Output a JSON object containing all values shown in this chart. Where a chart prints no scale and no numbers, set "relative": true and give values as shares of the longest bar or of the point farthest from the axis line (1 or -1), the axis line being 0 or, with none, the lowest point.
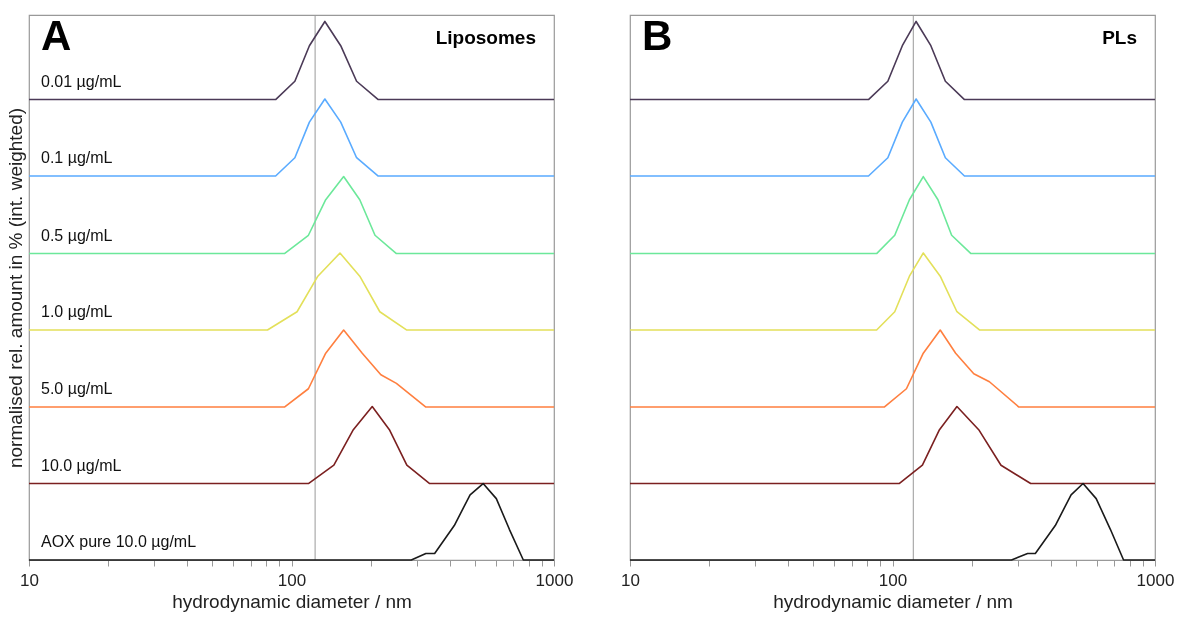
{
  "chart_data": [
    {
      "type": "line",
      "title": "Liposomes",
      "annotations": [
        "A"
      ],
      "xlabel": "hydrodynamic diameter / nm",
      "ylabel": "normalised rel. amount in % (int. weighted)",
      "relative": true,
      "log": "x",
      "grid": false,
      "marker": "none",
      "line_style": "solid",
      "xlim": [
        10,
        1000
      ],
      "xticks": [
        10,
        {
          "value": 20,
          "label": null
        },
        {
          "value": 30,
          "label": null
        },
        {
          "value": 40,
          "label": null
        },
        {
          "value": 50,
          "label": null
        },
        {
          "value": 60,
          "label": null
        },
        {
          "value": 70,
          "label": null
        },
        {
          "value": 80,
          "label": null
        },
        {
          "value": 90,
          "label": null
        },
        100,
        {
          "value": 200,
          "label": null
        },
        {
          "value": 300,
          "label": null
        },
        {
          "value": 400,
          "label": null
        },
        {
          "value": 500,
          "label": null
        },
        {
          "value": 600,
          "label": null
        },
        {
          "value": 700,
          "label": null
        },
        {
          "value": 800,
          "label": null
        },
        {
          "value": 900,
          "label": null
        },
        1000
      ],
      "ref_lines": [
        {
          "axis": "x",
          "value": 123,
          "color": "#999999"
        }
      ],
      "series": [
        {
          "name": "0.01 µg/mL",
          "color": "#4b3a57",
          "x": [
            10,
            87,
            103,
            117,
            134,
            154,
            177,
            214,
            1000
          ],
          "values": [
            0.855,
            0.855,
            0.889,
            0.955,
            1.0,
            0.955,
            0.889,
            0.855,
            0.855
          ]
        },
        {
          "name": "0.1 µg/mL",
          "color": "#5aabff",
          "x": [
            10,
            87,
            103,
            117,
            134,
            154,
            177,
            214,
            1000
          ],
          "values": [
            0.713,
            0.713,
            0.747,
            0.813,
            0.856,
            0.813,
            0.747,
            0.713,
            0.713
          ]
        },
        {
          "name": "0.5 µg/mL",
          "color": "#6ce89a",
          "x": [
            10,
            94,
            116,
            135,
            158,
            182,
            208,
            251,
            1000
          ],
          "values": [
            0.569,
            0.569,
            0.603,
            0.669,
            0.712,
            0.669,
            0.603,
            0.569,
            0.569
          ]
        },
        {
          "name": "1.0 µg/mL",
          "color": "#e3e05a",
          "x": [
            10,
            81,
            105,
            126,
            153,
            182,
            217,
            275,
            1000
          ],
          "values": [
            0.427,
            0.427,
            0.461,
            0.527,
            0.57,
            0.527,
            0.461,
            0.427,
            0.427
          ]
        },
        {
          "name": "5.0 µg/mL",
          "color": "#ff7f3f",
          "x": [
            10,
            94,
            116,
            135,
            158,
            186,
            219,
            251,
            325,
            1000
          ],
          "values": [
            0.284,
            0.284,
            0.318,
            0.384,
            0.427,
            0.384,
            0.344,
            0.328,
            0.284,
            0.284
          ]
        },
        {
          "name": "10.0 µg/mL",
          "color": "#7b2020",
          "x": [
            10,
            116,
            145,
            172,
            203,
            236,
            275,
            336,
            1000
          ],
          "values": [
            0.142,
            0.142,
            0.176,
            0.242,
            0.285,
            0.242,
            0.176,
            0.142,
            0.142
          ]
        },
        {
          "name": "AOX pure 10.0 µg/mL",
          "color": "#1a1a1a",
          "x": [
            10,
            286,
            325,
            351,
            417,
            479,
            537,
            603,
            676,
            764,
            1000
          ],
          "values": [
            0,
            0,
            0.012,
            0.012,
            0.064,
            0.121,
            0.142,
            0.114,
            0.057,
            0,
            0
          ]
        }
      ]
    },
    {
      "type": "line",
      "title": "PLs",
      "annotations": [
        "B"
      ],
      "xlabel": "hydrodynamic diameter / nm",
      "relative": true,
      "log": "x",
      "grid": false,
      "marker": "none",
      "line_style": "solid",
      "xlim": [
        10,
        1000
      ],
      "xticks": [
        10,
        {
          "value": 20,
          "label": null
        },
        {
          "value": 30,
          "label": null
        },
        {
          "value": 40,
          "label": null
        },
        {
          "value": 50,
          "label": null
        },
        {
          "value": 60,
          "label": null
        },
        {
          "value": 70,
          "label": null
        },
        {
          "value": 80,
          "label": null
        },
        {
          "value": 90,
          "label": null
        },
        100,
        {
          "value": 200,
          "label": null
        },
        {
          "value": 300,
          "label": null
        },
        {
          "value": 400,
          "label": null
        },
        {
          "value": 500,
          "label": null
        },
        {
          "value": 600,
          "label": null
        },
        {
          "value": 700,
          "label": null
        },
        {
          "value": 800,
          "label": null
        },
        {
          "value": 900,
          "label": null
        },
        1000
      ],
      "ref_lines": [
        {
          "axis": "x",
          "value": 120,
          "color": "#999999"
        }
      ],
      "series": [
        {
          "color": "#4b3a57",
          "x": [
            10,
            81,
            96,
            109,
            123,
            140,
            159,
            188,
            1000
          ],
          "values": [
            0.855,
            0.855,
            0.889,
            0.955,
            1.0,
            0.955,
            0.889,
            0.855,
            0.855
          ]
        },
        {
          "color": "#5aabff",
          "x": [
            10,
            81,
            96,
            109,
            123,
            140,
            159,
            188,
            1000
          ],
          "values": [
            0.713,
            0.713,
            0.747,
            0.813,
            0.856,
            0.813,
            0.747,
            0.713,
            0.713
          ]
        },
        {
          "color": "#6ce89a",
          "x": [
            10,
            87,
            102,
            116,
            131,
            149,
            168,
            199,
            1000
          ],
          "values": [
            0.569,
            0.569,
            0.603,
            0.669,
            0.712,
            0.669,
            0.603,
            0.569,
            0.569
          ]
        },
        {
          "color": "#e3e05a",
          "x": [
            10,
            87,
            102,
            116,
            131,
            152,
            176,
            215,
            1000
          ],
          "values": [
            0.427,
            0.427,
            0.461,
            0.527,
            0.57,
            0.527,
            0.461,
            0.427,
            0.427
          ]
        },
        {
          "color": "#ff7f3f",
          "x": [
            10,
            93,
            113,
            131,
            152,
            174,
            204,
            234,
            303,
            1000
          ],
          "values": [
            0.284,
            0.284,
            0.318,
            0.384,
            0.427,
            0.384,
            0.346,
            0.331,
            0.284,
            0.284
          ]
        },
        {
          "color": "#7b2020",
          "x": [
            10,
            106,
            130,
            151,
            176,
            213,
            259,
            336,
            1000
          ],
          "values": [
            0.142,
            0.142,
            0.176,
            0.242,
            0.285,
            0.242,
            0.176,
            0.142,
            0.142
          ]
        },
        {
          "color": "#1a1a1a",
          "x": [
            10,
            284,
            327,
            350,
            417,
            479,
            532,
            597,
            676,
            759,
            1000
          ],
          "values": [
            0,
            0,
            0.012,
            0.012,
            0.064,
            0.121,
            0.142,
            0.114,
            0.057,
            0,
            0
          ]
        }
      ]
    }
  ]
}
